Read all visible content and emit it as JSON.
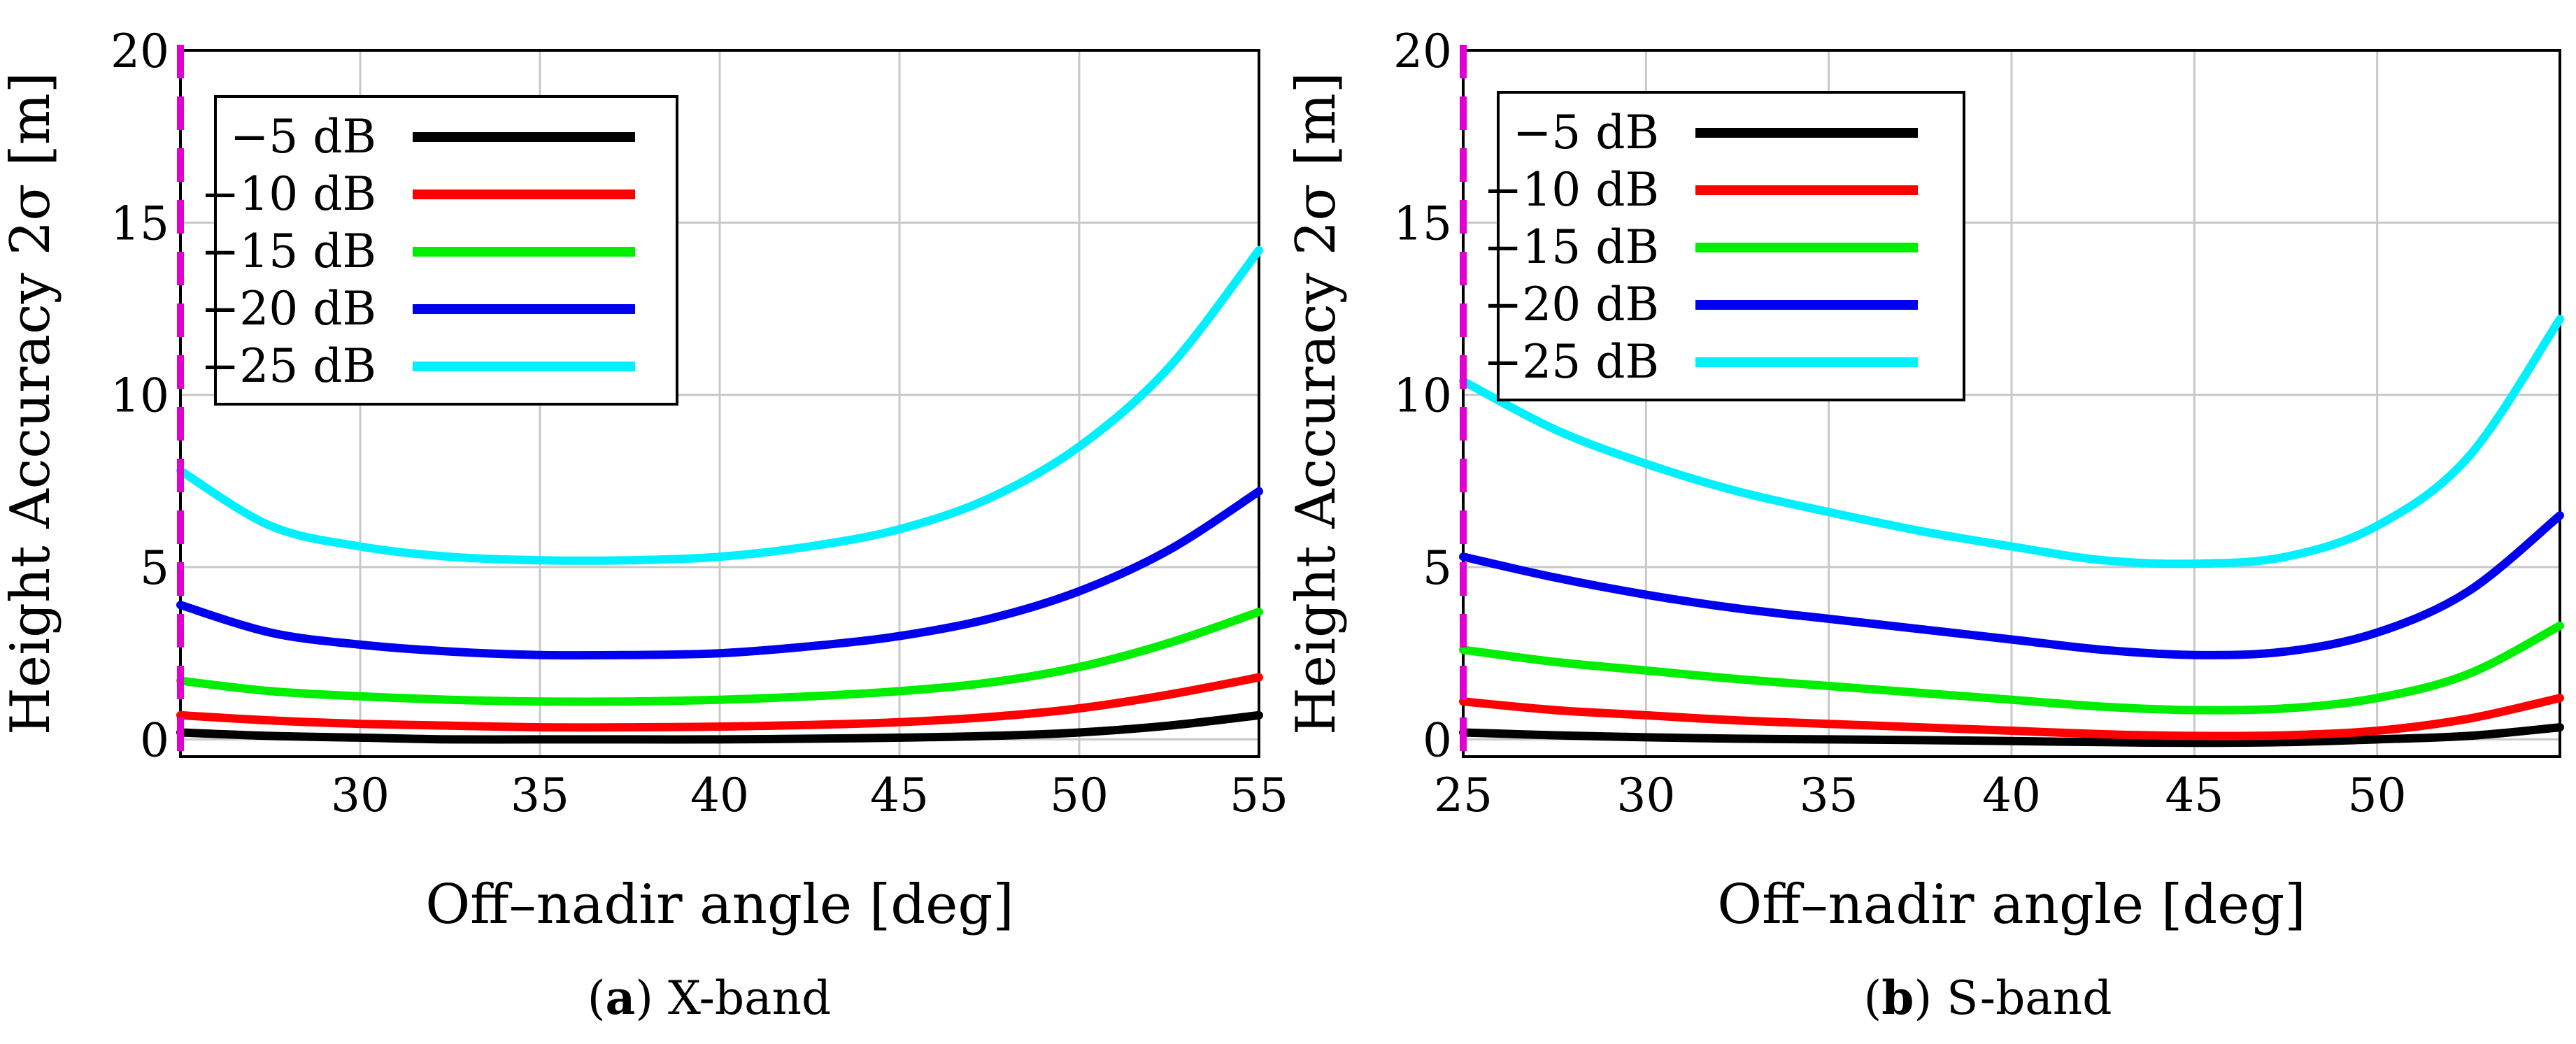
{
  "chart_data": [
    {
      "type": "line",
      "panel": "a",
      "caption_letter": "a",
      "caption_text": "X-band",
      "xlabel": "Off–nadir angle [deg]",
      "ylabel": "Height Accuracy 2σ [m]",
      "xlim": [
        25,
        55
      ],
      "ylim": [
        -0.5,
        20
      ],
      "xticks": [
        30,
        35,
        40,
        45,
        50,
        55
      ],
      "yticks": [
        0,
        5,
        10,
        15,
        20
      ],
      "grid": true,
      "legend_position": "top-left",
      "reference_line": {
        "x": 25,
        "color": "#e000d0",
        "style": "dashed"
      },
      "series": [
        {
          "name": "−5 dB",
          "color": "#000000",
          "x": [
            25,
            27.5,
            30,
            32.5,
            35,
            37.5,
            40,
            42.5,
            45,
            47.5,
            50,
            52.5,
            55
          ],
          "values": [
            0.2,
            0.1,
            0.05,
            0.0,
            0.0,
            0.0,
            0.0,
            0.02,
            0.05,
            0.1,
            0.2,
            0.4,
            0.7
          ]
        },
        {
          "name": "−10 dB",
          "color": "#ff0000",
          "x": [
            25,
            27.5,
            30,
            32.5,
            35,
            37.5,
            40,
            42.5,
            45,
            47.5,
            50,
            52.5,
            55
          ],
          "values": [
            0.7,
            0.55,
            0.45,
            0.4,
            0.35,
            0.35,
            0.37,
            0.42,
            0.5,
            0.65,
            0.9,
            1.3,
            1.8
          ]
        },
        {
          "name": "−15 dB",
          "color": "#00ee00",
          "x": [
            25,
            27.5,
            30,
            32.5,
            35,
            37.5,
            40,
            42.5,
            45,
            47.5,
            50,
            52.5,
            55
          ],
          "values": [
            1.7,
            1.4,
            1.25,
            1.15,
            1.1,
            1.1,
            1.15,
            1.25,
            1.4,
            1.65,
            2.1,
            2.8,
            3.7
          ]
        },
        {
          "name": "−20 dB",
          "color": "#0000ee",
          "x": [
            25,
            27.5,
            30,
            32.5,
            35,
            37.5,
            40,
            42.5,
            45,
            47.5,
            50,
            52.5,
            55
          ],
          "values": [
            3.9,
            3.1,
            2.75,
            2.55,
            2.45,
            2.45,
            2.5,
            2.7,
            3.0,
            3.5,
            4.3,
            5.5,
            7.2
          ]
        },
        {
          "name": "−25 dB",
          "color": "#00f0ff",
          "x": [
            25,
            27.5,
            30,
            32.5,
            35,
            37.5,
            40,
            42.5,
            45,
            47.5,
            50,
            52.5,
            55
          ],
          "values": [
            7.8,
            6.2,
            5.6,
            5.3,
            5.2,
            5.2,
            5.3,
            5.6,
            6.1,
            7.0,
            8.5,
            10.8,
            14.2
          ]
        }
      ]
    },
    {
      "type": "line",
      "panel": "b",
      "caption_letter": "b",
      "caption_text": "S-band",
      "xlabel": "Off–nadir angle [deg]",
      "ylabel": "Height Accuracy 2σ [m]",
      "xlim": [
        25,
        55
      ],
      "ylim": [
        -0.5,
        20
      ],
      "xticks": [
        25,
        30,
        35,
        40,
        45,
        50
      ],
      "yticks": [
        0,
        5,
        10,
        15,
        20
      ],
      "grid": true,
      "legend_position": "top-left",
      "reference_line": {
        "x": 25,
        "color": "#e000d0",
        "style": "dashed"
      },
      "series": [
        {
          "name": "−5 dB",
          "color": "#000000",
          "x": [
            25,
            27.5,
            30,
            32.5,
            35,
            37.5,
            40,
            42.5,
            45,
            47.5,
            50,
            52.5,
            55
          ],
          "values": [
            0.2,
            0.12,
            0.06,
            0.02,
            0.0,
            -0.02,
            -0.05,
            -0.08,
            -0.1,
            -0.08,
            0.0,
            0.1,
            0.35
          ]
        },
        {
          "name": "−10 dB",
          "color": "#ff0000",
          "x": [
            25,
            27.5,
            30,
            32.5,
            35,
            37.5,
            40,
            42.5,
            45,
            47.5,
            50,
            52.5,
            55
          ],
          "values": [
            1.1,
            0.85,
            0.7,
            0.55,
            0.45,
            0.35,
            0.25,
            0.15,
            0.1,
            0.12,
            0.25,
            0.6,
            1.2
          ]
        },
        {
          "name": "−15 dB",
          "color": "#00ee00",
          "x": [
            25,
            27.5,
            30,
            32.5,
            35,
            37.5,
            40,
            42.5,
            45,
            47.5,
            50,
            52.5,
            55
          ],
          "values": [
            2.6,
            2.25,
            2.0,
            1.75,
            1.55,
            1.35,
            1.15,
            0.95,
            0.85,
            0.9,
            1.2,
            1.9,
            3.3
          ]
        },
        {
          "name": "−20 dB",
          "color": "#0000ee",
          "x": [
            25,
            27.5,
            30,
            32.5,
            35,
            37.5,
            40,
            42.5,
            45,
            47.5,
            50,
            52.5,
            55
          ],
          "values": [
            5.3,
            4.7,
            4.2,
            3.8,
            3.5,
            3.2,
            2.9,
            2.6,
            2.45,
            2.55,
            3.1,
            4.3,
            6.5
          ]
        },
        {
          "name": "−25 dB",
          "color": "#00f0ff",
          "x": [
            25,
            27.5,
            30,
            32.5,
            35,
            37.5,
            40,
            42.5,
            45,
            47.5,
            50,
            52.5,
            55
          ],
          "values": [
            10.4,
            9.0,
            8.0,
            7.2,
            6.6,
            6.05,
            5.6,
            5.2,
            5.1,
            5.3,
            6.2,
            8.2,
            12.2
          ]
        }
      ]
    }
  ]
}
